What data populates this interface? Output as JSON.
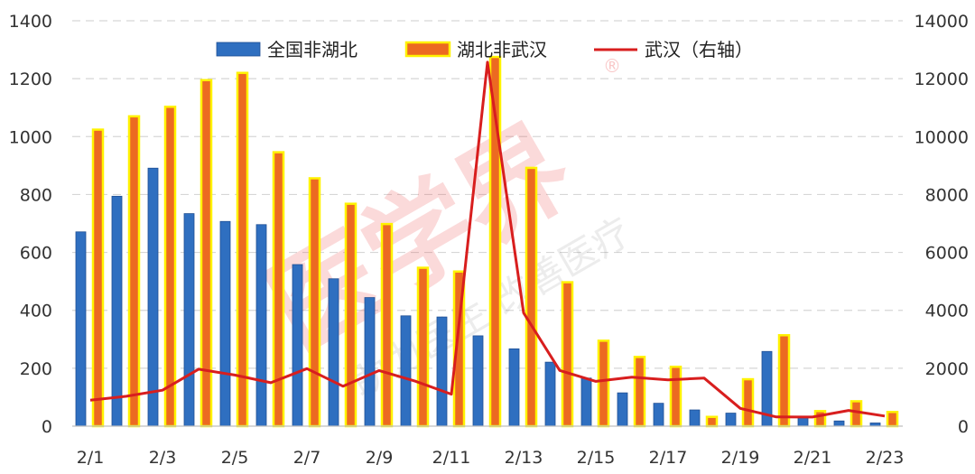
{
  "colors": {
    "series1_fill": "#2f6fc0",
    "series1_edge": "#1f4f94",
    "series2_fill": "#ec6a21",
    "series2_edge": "#fff200",
    "series3_line": "#d81e1e",
    "grid": "#d6d6d6"
  },
  "watermark": {
    "main": "医学界",
    "sub": "助力医生 改善医疗",
    "reg": "®"
  },
  "chart_data": {
    "type": "bar",
    "categories": [
      "2/1",
      "2/2",
      "2/3",
      "2/4",
      "2/5",
      "2/6",
      "2/7",
      "2/8",
      "2/9",
      "2/10",
      "2/11",
      "2/12",
      "2/13",
      "2/14",
      "2/15",
      "2/16",
      "2/17",
      "2/18",
      "2/19",
      "2/20",
      "2/21",
      "2/22",
      "2/23"
    ],
    "x_tick_labels": [
      "2/1",
      "2/3",
      "2/5",
      "2/7",
      "2/9",
      "2/11",
      "2/13",
      "2/15",
      "2/17",
      "2/19",
      "2/21",
      "2/23"
    ],
    "y_left": {
      "ylim": [
        0,
        1400
      ],
      "ticks": [
        "0",
        "200",
        "400",
        "600",
        "800",
        "1000",
        "1200",
        "1400"
      ]
    },
    "y_right": {
      "ylim": [
        0,
        14000
      ],
      "ticks": [
        "0",
        "2000",
        "4000",
        "6000",
        "8000",
        "10000",
        "12000",
        "14000"
      ]
    },
    "grid": true,
    "legend_position": "top",
    "series": [
      {
        "name": "全国非湖北",
        "type": "bar",
        "axis": "left",
        "values": [
          671,
          794,
          891,
          734,
          707,
          696,
          558,
          509,
          444,
          381,
          377,
          312,
          267,
          221,
          166,
          115,
          79,
          56,
          45,
          258,
          31,
          18,
          11
        ]
      },
      {
        "name": "湖北非武汉",
        "type": "bar",
        "axis": "left",
        "values": [
          1024,
          1070,
          1103,
          1195,
          1220,
          946,
          856,
          768,
          698,
          547,
          534,
          1275,
          892,
          497,
          295,
          239,
          205,
          32,
          162,
          314,
          52,
          86,
          49
        ]
      },
      {
        "name": "武汉（右轴）",
        "type": "line",
        "axis": "right",
        "values": [
          894,
          1033,
          1242,
          1967,
          1766,
          1501,
          1985,
          1379,
          1920,
          1552,
          1104,
          12570,
          3910,
          1923,
          1548,
          1690,
          1600,
          1660,
          615,
          319,
          314,
          541,
          348
        ]
      }
    ]
  }
}
